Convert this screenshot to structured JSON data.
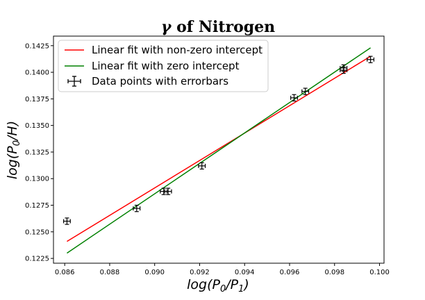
{
  "chart_data": {
    "type": "scatter",
    "title_symbol": "γ",
    "title_rest": "of Nitrogen",
    "xlabel": {
      "pre": "log(P",
      "sub1": "0",
      "mid": "/P",
      "sub2": "1",
      "post": ")"
    },
    "ylabel": {
      "pre": "log(P",
      "sub": "0",
      "post": "/H)"
    },
    "xlim": [
      0.0855,
      0.1002
    ],
    "ylim": [
      0.12205,
      0.1434
    ],
    "xticks": [
      0.086,
      0.088,
      0.09,
      0.092,
      0.094,
      0.096,
      0.098,
      0.1
    ],
    "xtick_labels": [
      "0.086",
      "0.088",
      "0.090",
      "0.092",
      "0.094",
      "0.096",
      "0.098",
      "0.100"
    ],
    "yticks": [
      0.1225,
      0.125,
      0.1275,
      0.13,
      0.1325,
      0.135,
      0.1375,
      0.14,
      0.1425
    ],
    "ytick_labels": [
      "0.1225",
      "0.1250",
      "0.1275",
      "0.1300",
      "0.1325",
      "0.1350",
      "0.1375",
      "0.1400",
      "0.1425"
    ],
    "points": [
      {
        "x": 0.0861,
        "y": 0.126
      },
      {
        "x": 0.0892,
        "y": 0.1272
      },
      {
        "x": 0.0904,
        "y": 0.1288
      },
      {
        "x": 0.0906,
        "y": 0.1288
      },
      {
        "x": 0.0921,
        "y": 0.1312
      },
      {
        "x": 0.0962,
        "y": 0.1376
      },
      {
        "x": 0.0967,
        "y": 0.1382
      },
      {
        "x": 0.0984,
        "y": 0.1402
      },
      {
        "x": 0.0984,
        "y": 0.1404
      },
      {
        "x": 0.0996,
        "y": 0.1412
      }
    ],
    "xerr": 0.00015,
    "yerr": 0.0003,
    "lines": [
      {
        "name": "Linear fit with non-zero intercept",
        "color": "#ff0000",
        "x": [
          0.0861,
          0.0996
        ],
        "y": [
          0.1241,
          0.1415
        ]
      },
      {
        "name": "Linear fit with zero intercept",
        "color": "#008000",
        "x": [
          0.0861,
          0.0996
        ],
        "y": [
          0.123,
          0.1423
        ]
      }
    ],
    "points_series_name": "Data points with errorbars",
    "legend_position": "top-left",
    "grid": false
  }
}
